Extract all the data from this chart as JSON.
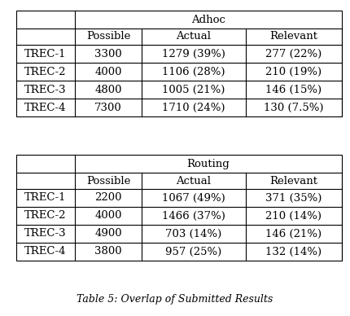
{
  "title": "Table 5: Overlap of Submitted Results",
  "adhoc_header": "Adhoc",
  "routing_header": "Routing",
  "col_headers": [
    "Possible",
    "Actual",
    "Relevant"
  ],
  "row_labels": [
    "TREC-1",
    "TREC-2",
    "TREC-3",
    "TREC-4"
  ],
  "adhoc_rows": [
    [
      "3300",
      "1279 (39%)",
      "277 (22%)"
    ],
    [
      "4000",
      "1106 (28%)",
      "210 (19%)"
    ],
    [
      "4800",
      "1005 (21%)",
      "146 (15%)"
    ],
    [
      "7300",
      "1710 (24%)",
      "130 (7.5%)"
    ]
  ],
  "routing_rows": [
    [
      "2200",
      "1067 (49%)",
      "371 (35%)"
    ],
    [
      "4000",
      "1466 (37%)",
      "210 (14%)"
    ],
    [
      "4900",
      "703 (14%)",
      "146 (21%)"
    ],
    [
      "3800",
      "957 (25%)",
      "132 (14%)"
    ]
  ],
  "bg_color": "#ffffff",
  "text_color": "#000000",
  "font_size": 9.5,
  "title_font_size": 9
}
